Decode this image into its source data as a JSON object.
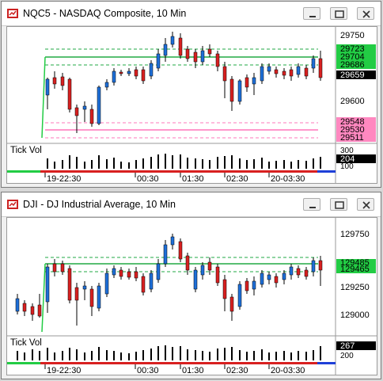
{
  "windows": [
    {
      "title": "NQC5 - NASDAQ Composite, 10 Min",
      "yticks": [
        "29750",
        "29600"
      ],
      "price_tags": [
        {
          "label": "29723",
          "color": "#22cc44",
          "text": "#000000"
        },
        {
          "label": "29704",
          "color": "#22cc44",
          "text": "#000000"
        },
        {
          "label": "29686",
          "color": "#22cc44",
          "text": "#000000"
        },
        {
          "label": "29659",
          "color": "#000000",
          "text": "#ffffff"
        },
        {
          "label": "29548",
          "color": "#ff88c0",
          "text": "#000000"
        },
        {
          "label": "29530",
          "color": "#ff88c0",
          "text": "#000000"
        },
        {
          "label": "29511",
          "color": "#ff88c0",
          "text": "#000000"
        }
      ],
      "volume": {
        "label": "Tick Vol",
        "ticks": [
          "300",
          "100"
        ],
        "value": "204"
      },
      "time_labels": [
        "19-22:30",
        "00:30",
        "01:30",
        "02:30",
        "20-03:30"
      ]
    },
    {
      "title": "DJI - DJ Industrial Average, 10 Min",
      "yticks": [
        "129750",
        "129500",
        "129250",
        "129000"
      ],
      "price_tags": [
        {
          "label": "129485",
          "color": "#22cc44",
          "text": "#000000"
        },
        {
          "label": "129465",
          "color": "#22cc44",
          "text": "#000000"
        }
      ],
      "volume": {
        "label": "Tick Vol",
        "ticks": [
          "200"
        ],
        "value": "267"
      },
      "time_labels": [
        "19-22:30",
        "00:30",
        "01:30",
        "02:30",
        "20-03:30"
      ]
    }
  ],
  "colors": {
    "up": "#1e6fd8",
    "down": "#d82020",
    "green_level": "#22aa44",
    "pink_level": "#ff77bb"
  }
}
